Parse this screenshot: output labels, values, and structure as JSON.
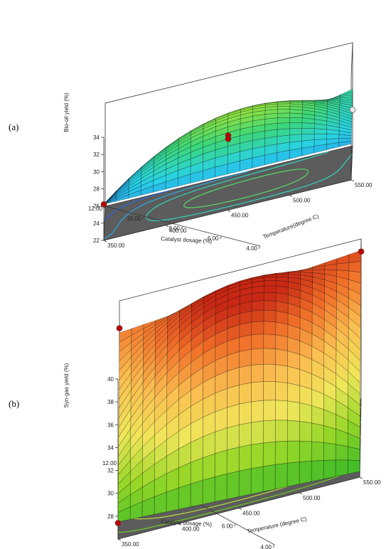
{
  "chart_data": [
    {
      "panel_label": "(a)",
      "type": "surface3d",
      "xlabel": "Temperature(degree C)",
      "ylabel": "Catalyst dosage (%)",
      "zlabel": "Bio-oil yield (%)",
      "x_ticks": [
        "350.00",
        "400.00",
        "450.00",
        "500.00",
        "550.00"
      ],
      "y_ticks": [
        "4.00",
        "6.00",
        "8.00",
        "10.00",
        "12.00"
      ],
      "z_ticks": [
        "22",
        "24",
        "26",
        "28",
        "30",
        "32",
        "34"
      ],
      "xlim": [
        350,
        550
      ],
      "ylim": [
        4,
        12
      ],
      "zlim": [
        22,
        34
      ],
      "corner_values": {
        "T350_C4": 26.2,
        "T550_C4": 26.2,
        "T350_C12": 22.4,
        "T550_C12": 28.6
      },
      "surface_peak": 31.2,
      "design_points": [
        {
          "temperature": 450,
          "catalyst": 8,
          "yield": 28.7,
          "color": "#c00000"
        },
        {
          "temperature": 450,
          "catalyst": 8,
          "yield": 28.3,
          "color": "#c00000"
        },
        {
          "temperature": 350,
          "catalyst": 4,
          "yield": 26.2,
          "color": "#c00000"
        },
        {
          "temperature": 550,
          "catalyst": 12,
          "yield": 26.2,
          "color": "#e8e8e8"
        }
      ],
      "colormap": "blue-cyan-green-yellow"
    },
    {
      "panel_label": "(b)",
      "type": "surface3d",
      "xlabel": "Temperature (degree C)",
      "ylabel": "Catalyst dosage (%)",
      "zlabel": "Syn-gas yield (%)",
      "x_ticks": [
        "350.00",
        "400.00",
        "450.00",
        "500.00",
        "550.00"
      ],
      "y_ticks": [
        "4.00",
        "6.00",
        "8.00",
        "10.00",
        "12.00"
      ],
      "z_ticks": [
        "28",
        "30",
        "32",
        "34",
        "36",
        "38",
        "40"
      ],
      "xlim": [
        350,
        550
      ],
      "ylim": [
        4,
        12
      ],
      "zlim": [
        26,
        40
      ],
      "corner_values": {
        "T350_C4": 27.5,
        "T550_C4": 26.5,
        "T350_C12": 37.2,
        "T550_C12": 39.0
      },
      "surface_peak": 39.6,
      "design_points": [
        {
          "temperature": 550,
          "catalyst": 12,
          "yield": 38.9,
          "color": "#c00000"
        },
        {
          "temperature": 350,
          "catalyst": 12,
          "yield": 37.6,
          "color": "#c00000"
        },
        {
          "temperature": 350,
          "catalyst": 4,
          "yield": 27.4,
          "color": "#c00000"
        }
      ],
      "colormap": "green-yellow-orange-red"
    }
  ]
}
